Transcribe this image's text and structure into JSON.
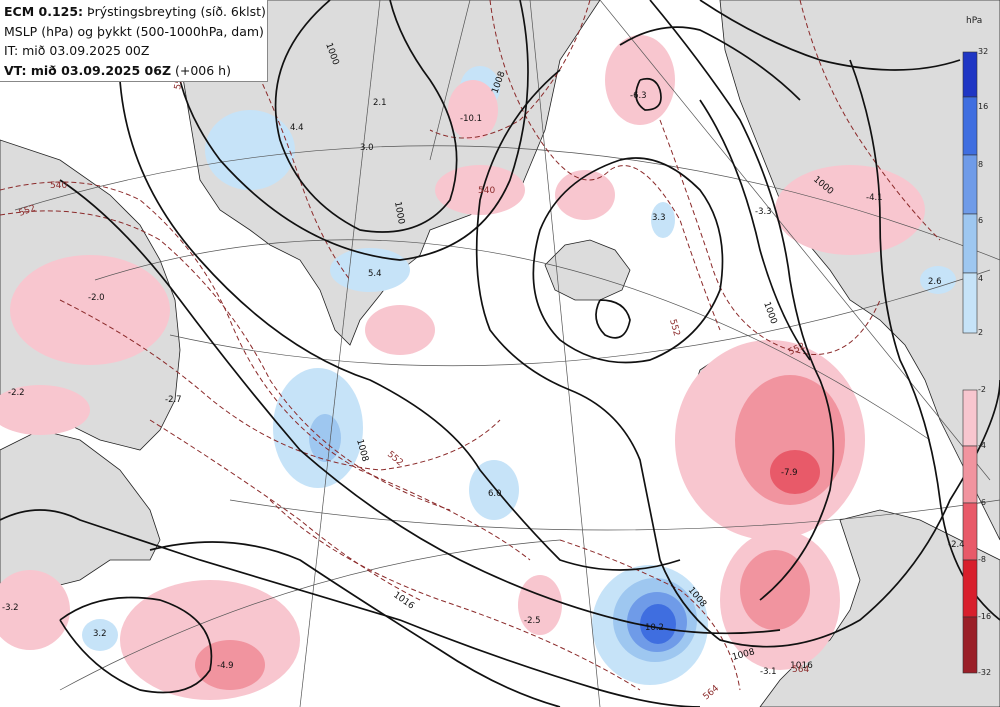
{
  "header": {
    "line1_bold": "ECM 0.125:",
    "line1_rest": " Þrýstingsbreyting (síð. 6klst)",
    "line2": "MSLP (hPa) og þykkt (500-1000hPa, dam)",
    "line3": "IT: mið 03.09.2025 00Z",
    "line4_bold": "VT: mið 03.09.2025 06Z",
    "line4_rest": " (+006 h)"
  },
  "legend": {
    "unit": "hPa",
    "positive": {
      "labels": [
        "32",
        "16",
        "8",
        "6",
        "4",
        "2"
      ],
      "colors": [
        "#1f36c4",
        "#3f6ee0",
        "#6f9be8",
        "#9ec7f0",
        "#c6e3f8"
      ]
    },
    "negative": {
      "labels": [
        "-2",
        "-4",
        "-6",
        "-8",
        "-16",
        "-32"
      ],
      "colors": [
        "#f8c6cf",
        "#f1949f",
        "#e85a69",
        "#d81f2c",
        "#9a1f28"
      ]
    }
  },
  "isobar_labels": [
    "1000",
    "1000",
    "1008",
    "1008",
    "1016",
    "1008",
    "1000",
    "1008",
    "1016",
    "1000"
  ],
  "thickness_labels": [
    "540",
    "552",
    "540",
    "552",
    "552",
    "552",
    "564",
    "552",
    "564"
  ],
  "change_labels": [
    "4.4",
    "2.1",
    "3.0",
    "5.4",
    "-2.0",
    "-2.7",
    "-10.1",
    "-6.3",
    "3.3",
    "-3.3",
    "-4.1",
    "2.6",
    "-7.9",
    "6.0",
    "-2.5",
    "10.2",
    "3.2",
    "-3.2",
    "-4.9",
    "-2.4",
    "-3.1",
    "-2.2"
  ]
}
